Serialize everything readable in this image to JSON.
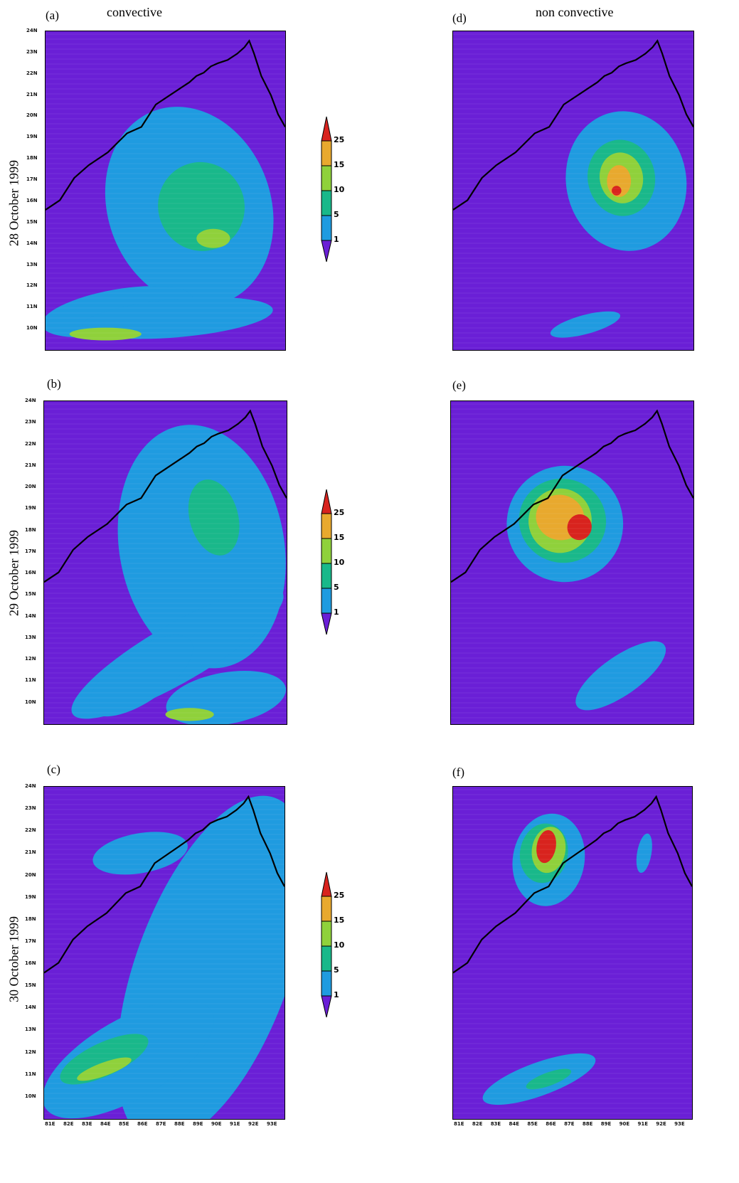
{
  "column_titles": {
    "left": "convective",
    "right": "non convective"
  },
  "row_labels": [
    "28 October 1999",
    "29 October 1999",
    "30 October 1999"
  ],
  "panel_labels": [
    "(a)",
    "(b)",
    "(c)",
    "(d)",
    "(e)",
    "(f)"
  ],
  "colors": {
    "background": "#6a1fd6",
    "level_1": "#1f9be0",
    "level_5": "#19b88a",
    "level_10": "#8fd13b",
    "level_15": "#e8a92e",
    "level_25": "#d8231e"
  },
  "chart_data": {
    "type": "heatmap",
    "description_of_panels": "six precipitation maps, Bay of Bengal region",
    "y_tick_labels": [
      "24N",
      "23N",
      "22N",
      "21N",
      "20N",
      "19N",
      "18N",
      "17N",
      "16N",
      "15N",
      "14N",
      "13N",
      "12N",
      "11N",
      "10N"
    ],
    "x_tick_labels": [
      "81E",
      "82E",
      "83E",
      "84E",
      "85E",
      "86E",
      "87E",
      "88E",
      "89E",
      "90E",
      "91E",
      "92E",
      "93E"
    ],
    "colorbar_levels": [
      "1",
      "5",
      "10",
      "15",
      "25"
    ],
    "panels": [
      {
        "id": "a",
        "column": "convective",
        "date": "28 October 1999"
      },
      {
        "id": "b",
        "column": "convective",
        "date": "29 October 1999"
      },
      {
        "id": "c",
        "column": "convective",
        "date": "30 October 1999"
      },
      {
        "id": "d",
        "column": "non convective",
        "date": "28 October 1999"
      },
      {
        "id": "e",
        "column": "non convective",
        "date": "29 October 1999"
      },
      {
        "id": "f",
        "column": "non convective",
        "date": "30 October 1999"
      }
    ]
  }
}
